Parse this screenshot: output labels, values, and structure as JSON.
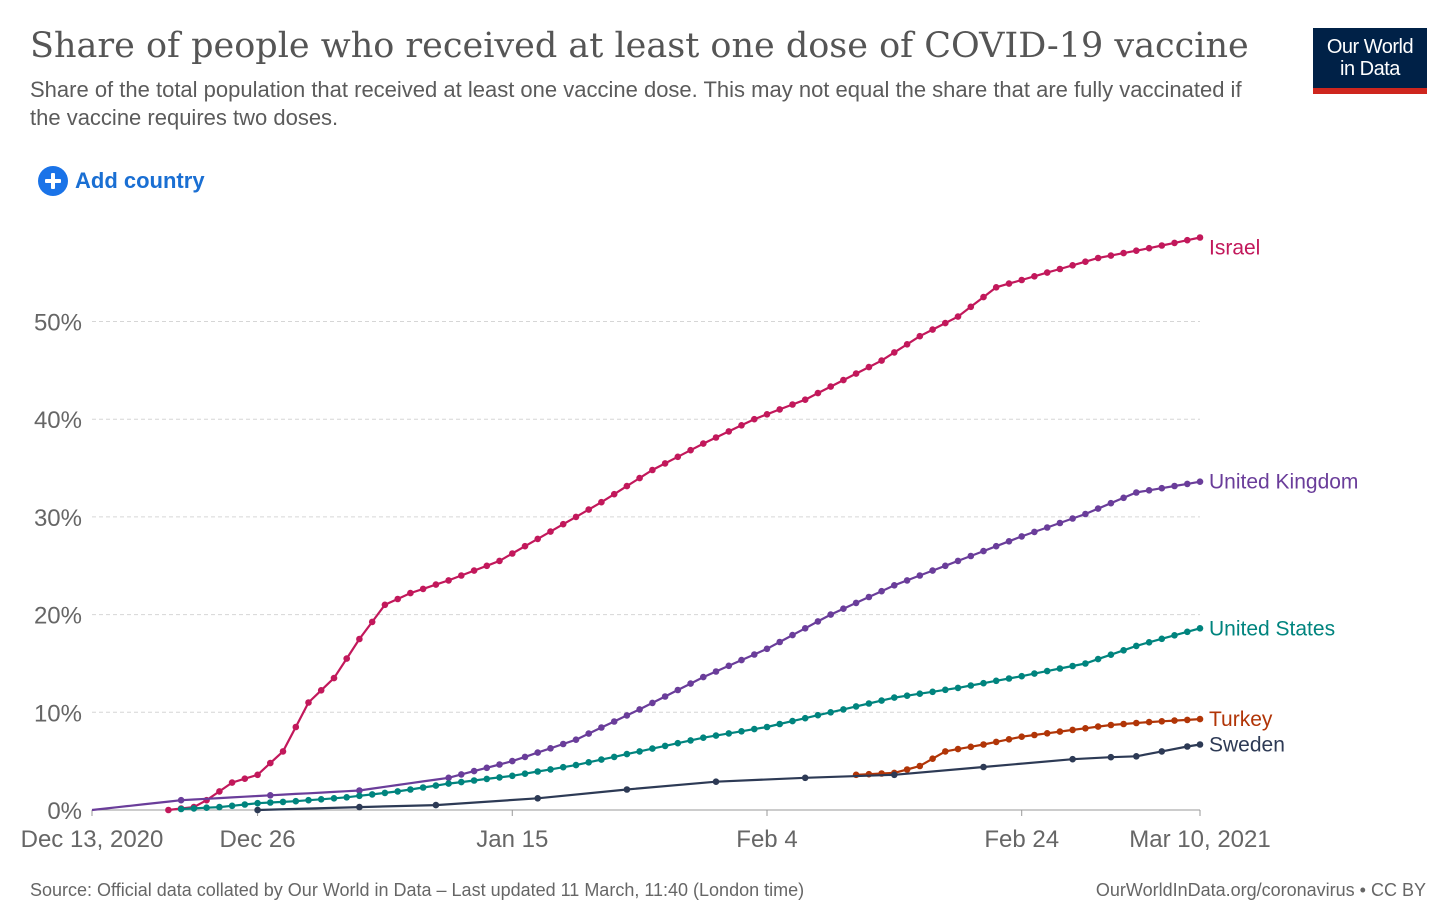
{
  "header": {
    "title": "Share of people who received at least one dose of COVID-19 vaccine",
    "subtitle": "Share of the total population that received at least one vaccine dose. This may not equal the share that are fully vaccinated if the vaccine requires two doses.",
    "logo_line1": "Our World",
    "logo_line2": "in Data"
  },
  "controls": {
    "add_country_label": "Add country",
    "add_icon": "plus-circle-icon"
  },
  "footer": {
    "source": "Source: Official data collated by Our World in Data – Last updated 11 March, 11:40 (London time)",
    "credit": "OurWorldInData.org/coronavirus • CC BY"
  },
  "chart_data": {
    "type": "line",
    "title": "Share of people who received at least one dose of COVID-19 vaccine",
    "x_axis": {
      "type": "date",
      "range": [
        "2020-12-13",
        "2021-03-10"
      ],
      "ticks": [
        {
          "date": "2020-12-13",
          "label": "Dec 13, 2020"
        },
        {
          "date": "2020-12-26",
          "label": "Dec 26"
        },
        {
          "date": "2021-01-15",
          "label": "Jan 15"
        },
        {
          "date": "2021-02-04",
          "label": "Feb 4"
        },
        {
          "date": "2021-02-24",
          "label": "Feb 24"
        },
        {
          "date": "2021-03-10",
          "label": "Mar 10, 2021"
        }
      ]
    },
    "y_axis": {
      "unit": "%",
      "range": [
        0,
        60
      ],
      "ticks": [
        {
          "value": 0,
          "label": "0%"
        },
        {
          "value": 10,
          "label": "10%"
        },
        {
          "value": 20,
          "label": "20%"
        },
        {
          "value": 30,
          "label": "30%"
        },
        {
          "value": 40,
          "label": "40%"
        },
        {
          "value": 50,
          "label": "50%"
        }
      ],
      "grid": true
    },
    "legend": "end-of-line labels",
    "series": [
      {
        "name": "Israel",
        "color": "#c2185b",
        "daily": true,
        "start": "2020-12-19",
        "anchors": [
          [
            "2020-12-19",
            0
          ],
          [
            "2020-12-21",
            0.3
          ],
          [
            "2020-12-22",
            1.0
          ],
          [
            "2020-12-24",
            2.8
          ],
          [
            "2020-12-26",
            3.6
          ],
          [
            "2020-12-28",
            6.0
          ],
          [
            "2020-12-30",
            11.0
          ],
          [
            "2021-01-01",
            13.5
          ],
          [
            "2021-01-03",
            17.5
          ],
          [
            "2021-01-05",
            21.0
          ],
          [
            "2021-01-07",
            22.2
          ],
          [
            "2021-01-10",
            23.5
          ],
          [
            "2021-01-14",
            25.5
          ],
          [
            "2021-01-18",
            28.5
          ],
          [
            "2021-01-22",
            31.5
          ],
          [
            "2021-01-26",
            34.8
          ],
          [
            "2021-01-30",
            37.5
          ],
          [
            "2021-02-03",
            40.0
          ],
          [
            "2021-02-07",
            42.0
          ],
          [
            "2021-02-10",
            44.0
          ],
          [
            "2021-02-13",
            46.0
          ],
          [
            "2021-02-16",
            48.5
          ],
          [
            "2021-02-19",
            50.5
          ],
          [
            "2021-02-22",
            53.5
          ],
          [
            "2021-02-26",
            55.0
          ],
          [
            "2021-03-02",
            56.5
          ],
          [
            "2021-03-06",
            57.5
          ],
          [
            "2021-03-10",
            58.6
          ]
        ]
      },
      {
        "name": "United Kingdom",
        "color": "#6a3d9a",
        "daily": true,
        "start": "2021-01-10",
        "anchors": [
          [
            "2020-12-13",
            0
          ],
          [
            "2020-12-20",
            1.0
          ],
          [
            "2020-12-27",
            1.5
          ],
          [
            "2021-01-03",
            2.0
          ],
          [
            "2021-01-10",
            3.3
          ],
          [
            "2021-01-15",
            5.0
          ],
          [
            "2021-01-20",
            7.2
          ],
          [
            "2021-01-25",
            10.3
          ],
          [
            "2021-01-30",
            13.6
          ],
          [
            "2021-02-04",
            16.5
          ],
          [
            "2021-02-09",
            20.0
          ],
          [
            "2021-02-14",
            23.0
          ],
          [
            "2021-02-19",
            25.5
          ],
          [
            "2021-02-24",
            28.0
          ],
          [
            "2021-03-01",
            30.3
          ],
          [
            "2021-03-05",
            32.5
          ],
          [
            "2021-03-10",
            33.6
          ]
        ]
      },
      {
        "name": "United States",
        "color": "#00847e",
        "daily": true,
        "start": "2020-12-20",
        "anchors": [
          [
            "2020-12-20",
            0.1
          ],
          [
            "2020-12-23",
            0.3
          ],
          [
            "2020-12-26",
            0.7
          ],
          [
            "2020-12-29",
            0.9
          ],
          [
            "2021-01-02",
            1.3
          ],
          [
            "2021-01-06",
            1.9
          ],
          [
            "2021-01-10",
            2.7
          ],
          [
            "2021-01-15",
            3.5
          ],
          [
            "2021-01-20",
            4.6
          ],
          [
            "2021-01-25",
            6.0
          ],
          [
            "2021-01-30",
            7.4
          ],
          [
            "2021-02-04",
            8.5
          ],
          [
            "2021-02-09",
            10.0
          ],
          [
            "2021-02-14",
            11.5
          ],
          [
            "2021-02-19",
            12.5
          ],
          [
            "2021-02-24",
            13.7
          ],
          [
            "2021-03-01",
            15.0
          ],
          [
            "2021-03-05",
            16.8
          ],
          [
            "2021-03-10",
            18.6
          ]
        ]
      },
      {
        "name": "Turkey",
        "color": "#b13507",
        "daily": true,
        "start": "2021-02-11",
        "anchors": [
          [
            "2021-02-11",
            3.6
          ],
          [
            "2021-02-14",
            3.8
          ],
          [
            "2021-02-16",
            4.5
          ],
          [
            "2021-02-18",
            6.0
          ],
          [
            "2021-02-21",
            6.7
          ],
          [
            "2021-02-24",
            7.5
          ],
          [
            "2021-02-28",
            8.2
          ],
          [
            "2021-03-03",
            8.7
          ],
          [
            "2021-03-06",
            9.0
          ],
          [
            "2021-03-10",
            9.3
          ]
        ]
      },
      {
        "name": "Sweden",
        "color": "#2d3a55",
        "daily": false,
        "points": [
          [
            "2020-12-26",
            0
          ],
          [
            "2021-01-03",
            0.3
          ],
          [
            "2021-01-09",
            0.5
          ],
          [
            "2021-01-17",
            1.2
          ],
          [
            "2021-01-24",
            2.1
          ],
          [
            "2021-01-31",
            2.9
          ],
          [
            "2021-02-07",
            3.3
          ],
          [
            "2021-02-14",
            3.6
          ],
          [
            "2021-02-21",
            4.4
          ],
          [
            "2021-02-28",
            5.2
          ],
          [
            "2021-03-03",
            5.4
          ],
          [
            "2021-03-05",
            5.5
          ],
          [
            "2021-03-07",
            6.0
          ],
          [
            "2021-03-09",
            6.5
          ],
          [
            "2021-03-10",
            6.7
          ]
        ]
      }
    ]
  }
}
